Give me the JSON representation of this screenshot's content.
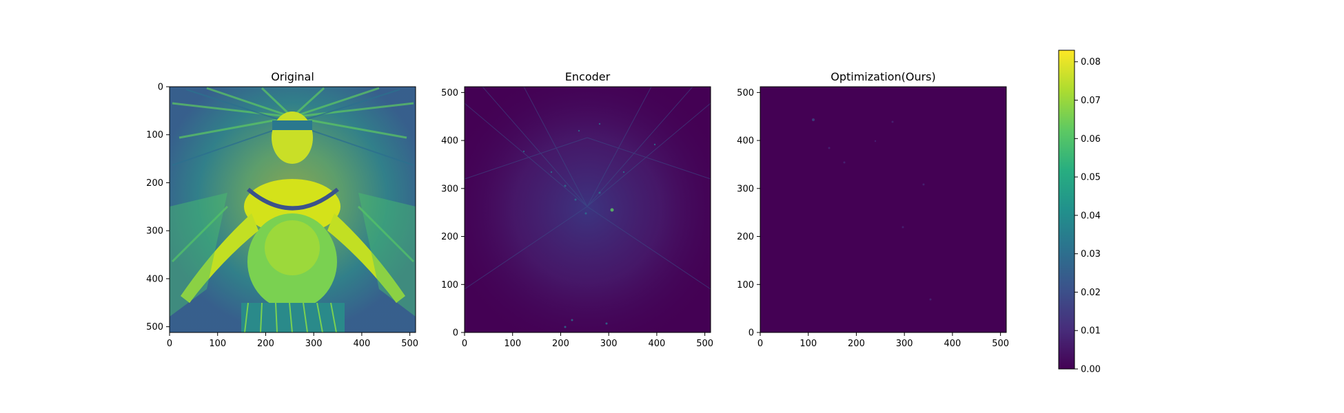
{
  "chart_data": [
    {
      "type": "heatmap",
      "title": "Original",
      "xticks": [
        "0",
        "100",
        "200",
        "300",
        "400",
        "500"
      ],
      "yticks": [
        "0",
        "100",
        "200",
        "300",
        "400",
        "500"
      ],
      "xlim": [
        0,
        512
      ],
      "ylim": [
        512,
        0
      ],
      "y_direction": "down",
      "content": "bright image of a woman with feathered headdress and outstretched arms"
    },
    {
      "type": "heatmap",
      "title": "Encoder",
      "xticks": [
        "0",
        "100",
        "200",
        "300",
        "400",
        "500"
      ],
      "yticks": [
        "0",
        "100",
        "200",
        "300",
        "400",
        "500"
      ],
      "xlim": [
        0,
        512
      ],
      "ylim": [
        0,
        512
      ],
      "y_direction": "up",
      "content": "mostly dark error map with moderate sparse highlights"
    },
    {
      "type": "heatmap",
      "title": "Optimization(Ours)",
      "xticks": [
        "0",
        "100",
        "200",
        "300",
        "400",
        "500"
      ],
      "yticks": [
        "0",
        "100",
        "200",
        "300",
        "400",
        "500"
      ],
      "xlim": [
        0,
        512
      ],
      "ylim": [
        0,
        512
      ],
      "y_direction": "up",
      "content": "nearly uniform dark error map with a few faint spots"
    }
  ],
  "colorbar": {
    "colormap": "viridis",
    "range": [
      0.0,
      0.083
    ],
    "ticks": [
      "0.00",
      "0.01",
      "0.02",
      "0.03",
      "0.04",
      "0.05",
      "0.06",
      "0.07",
      "0.08"
    ],
    "tick_values": [
      0.0,
      0.01,
      0.02,
      0.03,
      0.04,
      0.05,
      0.06,
      0.07,
      0.08
    ]
  }
}
